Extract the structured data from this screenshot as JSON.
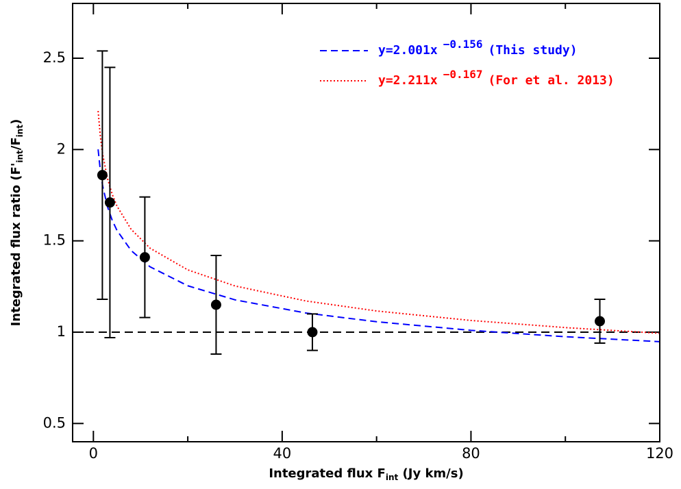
{
  "chart_data": {
    "type": "scatter",
    "x_label": {
      "text": "Integrated flux F",
      "sub": "int",
      "after": " (Jy km/s)"
    },
    "y_label": {
      "text": "Integrated flux ratio (F'",
      "sub": "int",
      "mid": "/F",
      "sub2": "int",
      "after": ")"
    },
    "xlim": [
      -4.4,
      120
    ],
    "ylim": [
      0.4,
      2.8
    ],
    "xticks": [
      0,
      40,
      80,
      120
    ],
    "xminor": [
      20,
      60,
      100
    ],
    "yticks": [
      0.5,
      1,
      1.5,
      2,
      2.5
    ],
    "points": {
      "color": "#000000",
      "x": [
        1.9,
        3.5,
        10.9,
        26,
        46.4,
        107.3
      ],
      "values": [
        1.86,
        1.71,
        1.41,
        1.15,
        1.0,
        1.06
      ],
      "errors": [
        0.68,
        0.74,
        0.33,
        0.27,
        0.1,
        0.12
      ]
    },
    "reference_line": {
      "value": 1,
      "color": "#000000"
    },
    "fits": [
      {
        "name": "y=2.001x",
        "exponent": "−0.156",
        "note": "(This study)",
        "color": "#0000ff",
        "style": "dashed",
        "x": [
          1,
          1.5,
          2,
          3,
          4,
          5,
          8,
          12,
          20,
          30,
          45,
          60,
          80,
          100,
          120
        ],
        "values": [
          2.001,
          1.878,
          1.796,
          1.686,
          1.612,
          1.557,
          1.447,
          1.358,
          1.254,
          1.177,
          1.105,
          1.057,
          1.01,
          0.975,
          0.948
        ]
      },
      {
        "name": "y=2.211x",
        "exponent": "−0.167",
        "note": "(For et al. 2013)",
        "color": "#ff0000",
        "style": "dotted",
        "x": [
          1,
          1.5,
          2,
          3,
          4,
          5,
          8,
          12,
          20,
          30,
          45,
          60,
          80,
          100,
          120
        ],
        "values": [
          2.211,
          2.066,
          1.969,
          1.84,
          1.754,
          1.69,
          1.563,
          1.46,
          1.341,
          1.253,
          1.171,
          1.116,
          1.064,
          1.025,
          0.994
        ]
      }
    ]
  }
}
